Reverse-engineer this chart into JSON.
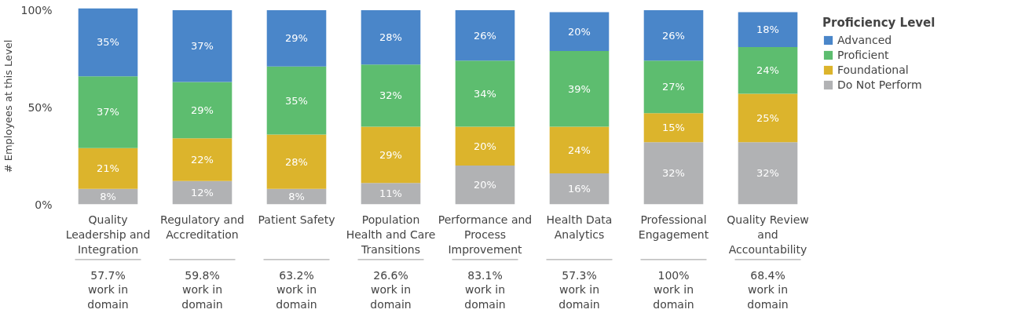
{
  "chart_data": {
    "type": "bar",
    "stacked": true,
    "categories": [
      "Quality Leadership and Integration",
      "Regulatory and Accreditation",
      "Patient Safety",
      "Population Health and Care Transitions",
      "Performance and Process Improvement",
      "Health Data Analytics",
      "Professional Engagement",
      "Quality Review and Accountability"
    ],
    "series": [
      {
        "name": "Do Not Perform",
        "color": "#b1b2b4",
        "values": [
          8,
          12,
          8,
          11,
          20,
          16,
          32,
          32
        ],
        "value_labels": [
          "8%",
          "12%",
          "8%",
          "11%",
          "20%",
          "16%",
          "32%",
          "32%"
        ]
      },
      {
        "name": "Foundational",
        "color": "#dcb42c",
        "values": [
          21,
          22,
          28,
          29,
          20,
          24,
          15,
          25
        ],
        "value_labels": [
          "21%",
          "22%",
          "28%",
          "29%",
          "20%",
          "24%",
          "15%",
          "25%"
        ]
      },
      {
        "name": "Proficient",
        "color": "#5dbd6f",
        "values": [
          37,
          29,
          35,
          32,
          34,
          39,
          27,
          24
        ],
        "value_labels": [
          "37%",
          "29%",
          "35%",
          "32%",
          "34%",
          "39%",
          "27%",
          "24%"
        ]
      },
      {
        "name": "Advanced",
        "color": "#4a86c9",
        "values": [
          35,
          37,
          29,
          28,
          26,
          20,
          26,
          18
        ],
        "value_labels": [
          "35%",
          "37%",
          "29%",
          "28%",
          "26%",
          "20%",
          "26%",
          "18%"
        ]
      }
    ],
    "ylabel": "# Employees at this Level",
    "ylim": [
      0,
      101
    ],
    "yticks": [
      {
        "value": 0,
        "label": "0%"
      },
      {
        "value": 50,
        "label": "50%"
      },
      {
        "value": 100,
        "label": "100%"
      }
    ],
    "grid": false,
    "legend": "right",
    "legend_title": "Proficiency Level",
    "annotations": [
      "57.7% work in domain",
      "59.8% work in domain",
      "63.2% work in domain",
      "26.6% work in domain",
      "83.1% work in domain",
      "57.3% work in domain",
      "100% work in domain",
      "68.4% work in domain"
    ]
  }
}
